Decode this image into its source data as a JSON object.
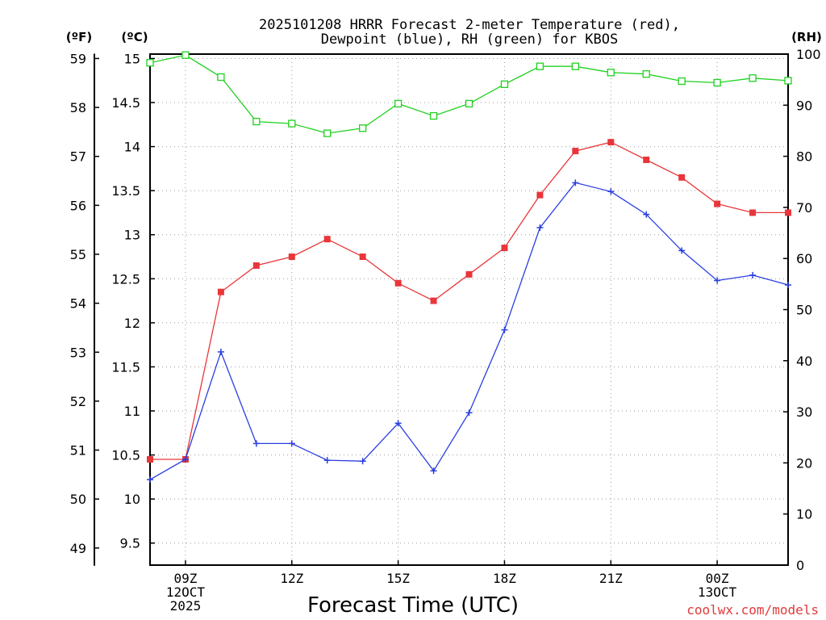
{
  "chart_data": {
    "type": "line",
    "title_line1": "2025101208 HRRR Forecast 2-meter Temperature (red),",
    "title_line2": "Dewpoint (blue), RH (green) for KBOS",
    "xlabel": "Forecast Time (UTC)",
    "unit_labels": {
      "fahrenheit": "(ºF)",
      "celsius": "(ºC)",
      "rh": "(RH)"
    },
    "credit": "coolwx.com/models",
    "x_hours": [
      8,
      9,
      10,
      11,
      12,
      13,
      14,
      15,
      16,
      17,
      18,
      19,
      20,
      21,
      22,
      23,
      24,
      25,
      26
    ],
    "xlim": [
      8,
      26
    ],
    "x_ticks": [
      {
        "hour": 9,
        "lines": [
          "09Z",
          "12OCT",
          "2025"
        ]
      },
      {
        "hour": 12,
        "lines": [
          "12Z"
        ]
      },
      {
        "hour": 15,
        "lines": [
          "15Z"
        ]
      },
      {
        "hour": 18,
        "lines": [
          "18Z"
        ]
      },
      {
        "hour": 21,
        "lines": [
          "21Z"
        ]
      },
      {
        "hour": 24,
        "lines": [
          "00Z",
          "13OCT"
        ]
      }
    ],
    "celsius_axis": {
      "ylim": [
        9.25,
        15.05
      ],
      "ticks": [
        9.5,
        10,
        10.5,
        11,
        11.5,
        12,
        12.5,
        13,
        13.5,
        14,
        14.5,
        15
      ],
      "tick_labels": [
        "9.5",
        "10",
        "10.5",
        "11",
        "11.5",
        "12",
        "12.5",
        "13",
        "13.5",
        "14",
        "14.5",
        "15"
      ]
    },
    "fahrenheit_axis": {
      "ticks": [
        49,
        50,
        51,
        52,
        53,
        54,
        55,
        56,
        57,
        58,
        59
      ],
      "tick_labels": [
        "49",
        "50",
        "51",
        "52",
        "53",
        "54",
        "55",
        "56",
        "57",
        "58",
        "59"
      ]
    },
    "rh_axis": {
      "ylim": [
        0,
        100
      ],
      "ticks": [
        0,
        10,
        20,
        30,
        40,
        50,
        60,
        70,
        80,
        90,
        100
      ],
      "tick_labels": [
        "0",
        "10",
        "20",
        "30",
        "40",
        "50",
        "60",
        "70",
        "80",
        "90",
        "100"
      ]
    },
    "series": [
      {
        "name": "Temperature",
        "axis": "celsius",
        "color": "#e8363a",
        "marker": "square-filled",
        "values": [
          10.45,
          10.45,
          12.35,
          12.65,
          12.75,
          12.95,
          12.75,
          12.45,
          12.25,
          12.55,
          12.85,
          13.45,
          13.95,
          14.05,
          13.85,
          13.65,
          13.35,
          13.25,
          13.25
        ]
      },
      {
        "name": "Dewpoint",
        "axis": "celsius",
        "color": "#2a3fe0",
        "marker": "plus",
        "values": [
          10.22,
          10.45,
          11.67,
          10.63,
          10.63,
          10.44,
          10.43,
          10.86,
          10.32,
          10.98,
          11.92,
          13.08,
          13.59,
          13.49,
          13.23,
          12.82,
          12.48,
          12.54,
          12.43
        ]
      },
      {
        "name": "RH",
        "axis": "rh",
        "color": "#1fd11f",
        "marker": "square-open",
        "values": [
          98.3,
          99.8,
          95.5,
          86.8,
          86.4,
          84.5,
          85.5,
          90.3,
          87.9,
          90.3,
          94.1,
          97.6,
          97.6,
          96.4,
          96.1,
          94.7,
          94.4,
          95.3,
          94.8
        ]
      }
    ]
  }
}
